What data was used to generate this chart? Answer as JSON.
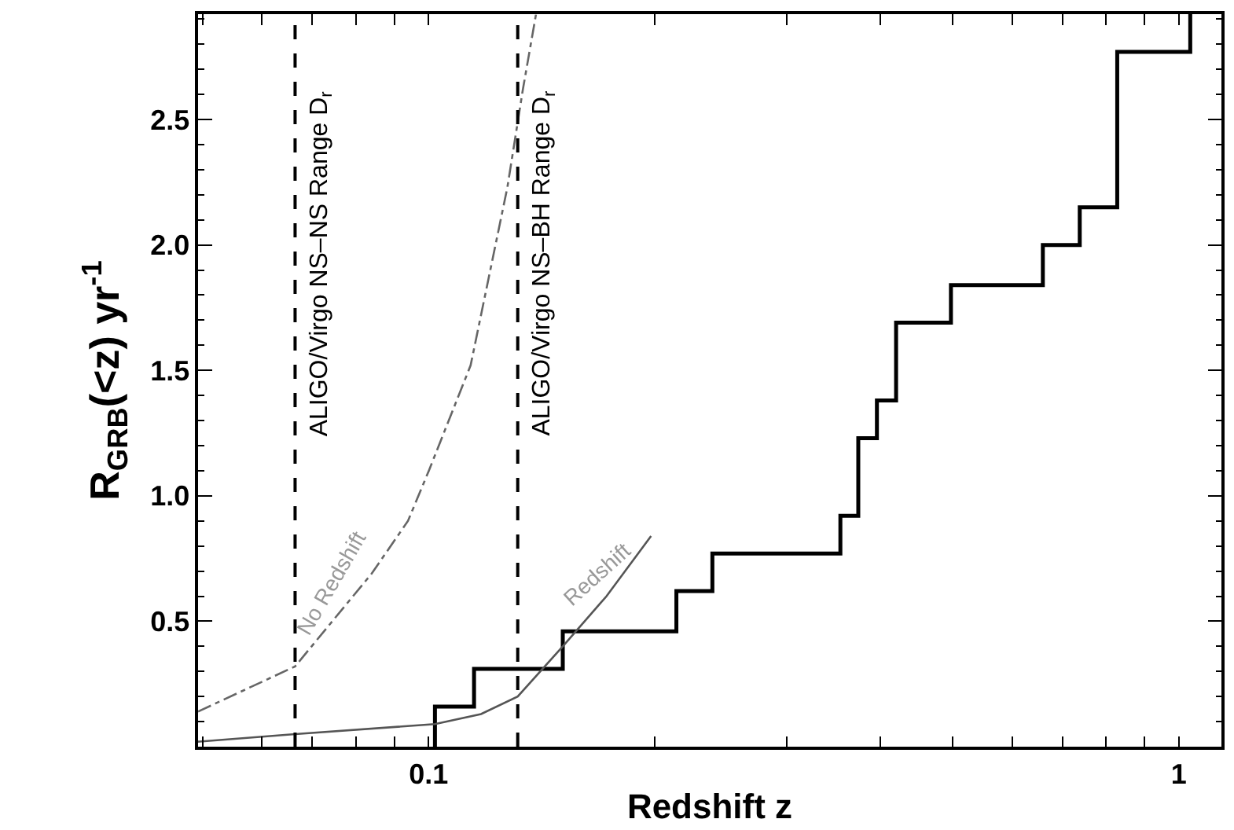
{
  "chart_data": {
    "type": "step",
    "xlabel": "Redshift z",
    "ylabel": "R$_{GRB}$(<z) yr$^{-1}$",
    "log": "x",
    "xlim": [
      0.0493,
      1.14
    ],
    "ylim": [
      0,
      2.92
    ],
    "xticks": [
      {
        "value": 0.05,
        "label": null
      },
      {
        "value": 0.06,
        "label": null
      },
      {
        "value": 0.07,
        "label": null
      },
      {
        "value": 0.08,
        "label": null
      },
      {
        "value": 0.09,
        "label": null
      },
      0.1,
      {
        "value": 0.2,
        "label": null
      },
      {
        "value": 0.3,
        "label": null
      },
      {
        "value": 0.4,
        "label": null
      },
      {
        "value": 0.5,
        "label": null
      },
      {
        "value": 0.6,
        "label": null
      },
      {
        "value": 0.7,
        "label": null
      },
      {
        "value": 0.8,
        "label": null
      },
      {
        "value": 0.9,
        "label": null
      },
      1
    ],
    "yticks": [
      0.5,
      {
        "value": 1,
        "label": "1.0"
      },
      1.5,
      {
        "value": 2,
        "label": "2.0"
      },
      2.5
    ],
    "legend": false,
    "marker": "none",
    "series": [
      {
        "color": "#000000",
        "line_style": "solid",
        "x": [
          0.102,
          0.102,
          0.115,
          0.151,
          0.214,
          0.239,
          0.354,
          0.374,
          0.396,
          0.42,
          0.497,
          0.659,
          0.738,
          0.828,
          1.036
        ],
        "values": [
          0,
          0.16,
          0.31,
          0.46,
          0.62,
          0.77,
          0.92,
          1.23,
          1.38,
          1.69,
          1.84,
          2.0,
          2.15,
          2.77,
          2.92
        ]
      },
      {
        "type": "line",
        "name": "No Redshift",
        "color": "#666666",
        "line_style": "dashdot",
        "x": [
          0.0493,
          0.0664,
          0.084,
          0.0939,
          0.1001,
          0.1138,
          0.1274,
          0.1336,
          0.1391
        ],
        "values": [
          0.14,
          0.32,
          0.69,
          0.9,
          1.1,
          1.52,
          2.23,
          2.62,
          2.92
        ]
      },
      {
        "type": "line",
        "name": "Redshift",
        "color": "#555555",
        "line_style": "solid",
        "x": [
          0.0493,
          0.0664,
          0.102,
          0.1175,
          0.1315,
          0.151,
          0.1727,
          0.198
        ],
        "values": [
          0.02,
          0.05,
          0.09,
          0.13,
          0.2,
          0.4,
          0.6,
          0.84
        ]
      }
    ],
    "ref_lines": [
      {
        "axis": "x",
        "value": 0.0664,
        "label": "ALIGO/Virgo NS–NS Range D$_{r}$",
        "color": "#000000",
        "line_style": "dashed"
      },
      {
        "axis": "x",
        "value": 0.1315,
        "label": "ALIGO/Virgo NS–BH Range D$_{r}$",
        "color": "#000000",
        "line_style": "dashed"
      }
    ]
  }
}
